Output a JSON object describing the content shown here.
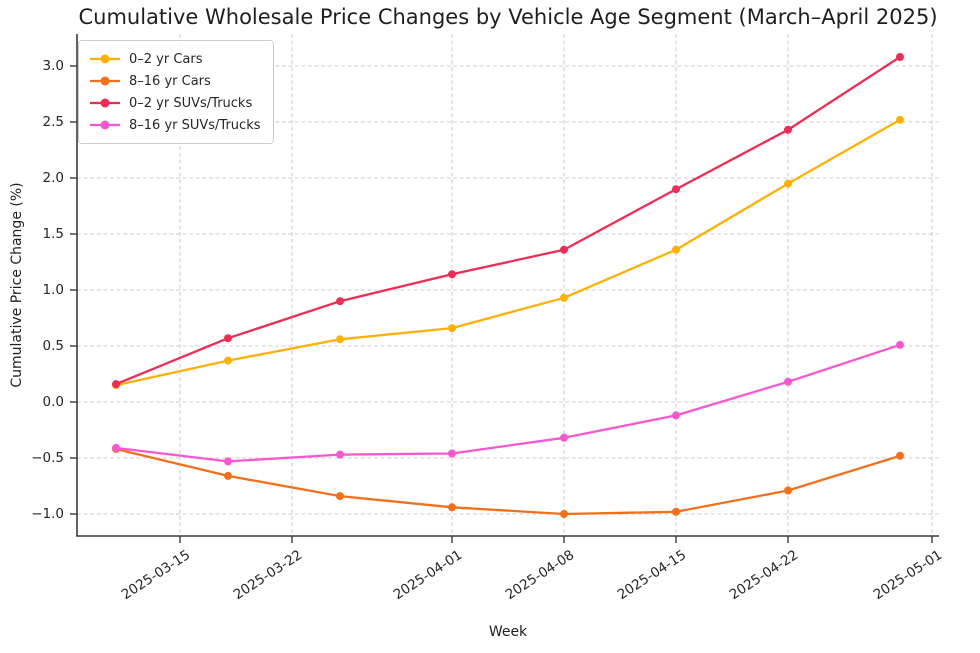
{
  "chart_data": {
    "type": "line",
    "title": "Cumulative Wholesale Price Changes by Vehicle Age Segment (March–April 2025)",
    "xlabel": "Week",
    "ylabel": "Cumulative Price Change (%)",
    "grid": true,
    "legend_position": "upper left",
    "x": [
      "2025-03-11",
      "2025-03-18",
      "2025-03-25",
      "2025-04-01",
      "2025-04-08",
      "2025-04-15",
      "2025-04-22",
      "2025-04-29"
    ],
    "series": [
      {
        "name": "0–2 yr Cars",
        "color": "#ffb005",
        "values": [
          0.15,
          0.37,
          0.56,
          0.66,
          0.93,
          1.36,
          1.95,
          2.52
        ]
      },
      {
        "name": "8–16 yr Cars",
        "color": "#f2701d",
        "values": [
          -0.42,
          -0.66,
          -0.84,
          -0.94,
          -1.0,
          -0.98,
          -0.79,
          -0.48
        ]
      },
      {
        "name": "0–2 yr SUVs/Trucks",
        "color": "#ee2c55",
        "values": [
          0.16,
          0.57,
          0.9,
          1.14,
          1.36,
          1.9,
          2.43,
          3.08
        ]
      },
      {
        "name": "8–16 yr SUVs/Trucks",
        "color": "#f957cd",
        "values": [
          -0.41,
          -0.53,
          -0.47,
          -0.46,
          -0.32,
          -0.12,
          0.18,
          0.51
        ]
      }
    ],
    "x_ticks": [
      "2025-03-15",
      "2025-03-22",
      "2025-04-01",
      "2025-04-08",
      "2025-04-15",
      "2025-04-22",
      "2025-05-01"
    ],
    "y_ticks": [
      "−1.0",
      "−0.5",
      "0.0",
      "0.5",
      "1.0",
      "1.5",
      "2.0",
      "2.5",
      "3.0"
    ],
    "ylim": [
      -1.2,
      3.28
    ],
    "axis_colors": {
      "spine": "#3a3a3a",
      "grid": "#cfcfcf",
      "text": "#262626"
    }
  }
}
